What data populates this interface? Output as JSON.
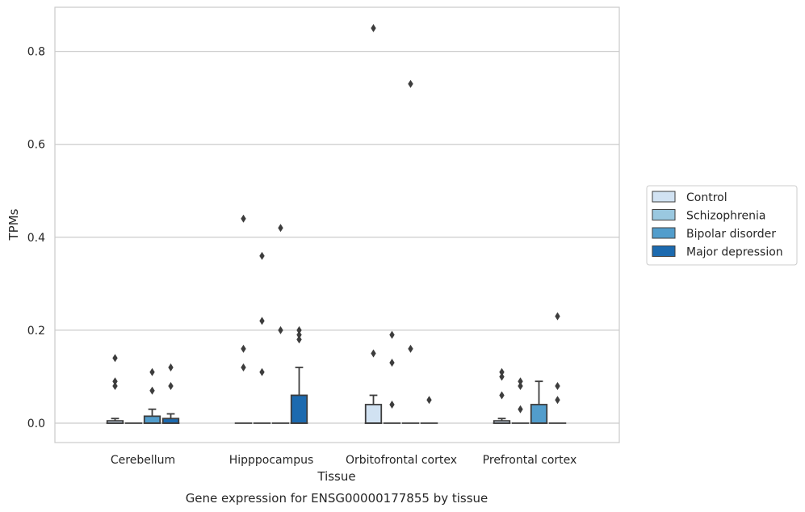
{
  "chart_data": {
    "type": "box",
    "title": "",
    "caption": "Gene expression for ENSG00000177855 by tissue",
    "xlabel": "Tissue",
    "ylabel": "TPMs",
    "ylim": [
      -0.042,
      0.895
    ],
    "yticks": [
      0.0,
      0.2,
      0.4,
      0.6,
      0.8
    ],
    "ytick_labels": [
      "0.0",
      "0.2",
      "0.4",
      "0.6",
      "0.8"
    ],
    "grid": true,
    "legend_position": "right",
    "categories": [
      "Cerebellum",
      "Hipppocampus",
      "Orbitofrontal cortex",
      "Prefrontal cortex"
    ],
    "series": [
      {
        "name": "Control",
        "color": "#d1e2f2"
      },
      {
        "name": "Schizophrenia",
        "color": "#9ac8e0"
      },
      {
        "name": "Bipolar disorder",
        "color": "#529dcc"
      },
      {
        "name": "Major depression",
        "color": "#1c6aaf"
      }
    ],
    "boxes": [
      {
        "category": 0,
        "series": 0,
        "q1": 0.0,
        "median": 0.0,
        "q3": 0.005,
        "whisker_low": 0.0,
        "whisker_high": 0.01,
        "outliers": [
          0.14,
          0.09,
          0.08
        ]
      },
      {
        "category": 0,
        "series": 1,
        "q1": 0.0,
        "median": 0.0,
        "q3": 0.0,
        "whisker_low": 0.0,
        "whisker_high": 0.0,
        "outliers": []
      },
      {
        "category": 0,
        "series": 2,
        "q1": 0.0,
        "median": 0.0,
        "q3": 0.015,
        "whisker_low": 0.0,
        "whisker_high": 0.03,
        "outliers": [
          0.11,
          0.07
        ]
      },
      {
        "category": 0,
        "series": 3,
        "q1": 0.0,
        "median": 0.0,
        "q3": 0.01,
        "whisker_low": 0.0,
        "whisker_high": 0.02,
        "outliers": [
          0.12,
          0.08
        ]
      },
      {
        "category": 1,
        "series": 0,
        "q1": 0.0,
        "median": 0.0,
        "q3": 0.0,
        "whisker_low": 0.0,
        "whisker_high": 0.0,
        "outliers": [
          0.44,
          0.16,
          0.12
        ]
      },
      {
        "category": 1,
        "series": 1,
        "q1": 0.0,
        "median": 0.0,
        "q3": 0.0,
        "whisker_low": 0.0,
        "whisker_high": 0.0,
        "outliers": [
          0.36,
          0.22,
          0.11
        ]
      },
      {
        "category": 1,
        "series": 2,
        "q1": 0.0,
        "median": 0.0,
        "q3": 0.0,
        "whisker_low": 0.0,
        "whisker_high": 0.0,
        "outliers": [
          0.42,
          0.2
        ]
      },
      {
        "category": 1,
        "series": 3,
        "q1": 0.0,
        "median": 0.0,
        "q3": 0.06,
        "whisker_low": 0.0,
        "whisker_high": 0.12,
        "outliers": [
          0.2,
          0.19,
          0.18
        ]
      },
      {
        "category": 2,
        "series": 0,
        "q1": 0.0,
        "median": 0.0,
        "q3": 0.04,
        "whisker_low": 0.0,
        "whisker_high": 0.06,
        "outliers": [
          0.85,
          0.15
        ]
      },
      {
        "category": 2,
        "series": 1,
        "q1": 0.0,
        "median": 0.0,
        "q3": 0.0,
        "whisker_low": 0.0,
        "whisker_high": 0.0,
        "outliers": [
          0.19,
          0.13,
          0.04
        ]
      },
      {
        "category": 2,
        "series": 2,
        "q1": 0.0,
        "median": 0.0,
        "q3": 0.0,
        "whisker_low": 0.0,
        "whisker_high": 0.0,
        "outliers": [
          0.73,
          0.16
        ]
      },
      {
        "category": 2,
        "series": 3,
        "q1": 0.0,
        "median": 0.0,
        "q3": 0.0,
        "whisker_low": 0.0,
        "whisker_high": 0.0,
        "outliers": [
          0.05
        ]
      },
      {
        "category": 3,
        "series": 0,
        "q1": 0.0,
        "median": 0.0,
        "q3": 0.005,
        "whisker_low": 0.0,
        "whisker_high": 0.01,
        "outliers": [
          0.11,
          0.1,
          0.06
        ]
      },
      {
        "category": 3,
        "series": 1,
        "q1": 0.0,
        "median": 0.0,
        "q3": 0.0,
        "whisker_low": 0.0,
        "whisker_high": 0.0,
        "outliers": [
          0.09,
          0.08,
          0.03
        ]
      },
      {
        "category": 3,
        "series": 2,
        "q1": 0.0,
        "median": 0.0,
        "q3": 0.04,
        "whisker_low": 0.0,
        "whisker_high": 0.09,
        "outliers": []
      },
      {
        "category": 3,
        "series": 3,
        "q1": 0.0,
        "median": 0.0,
        "q3": 0.0,
        "whisker_low": 0.0,
        "whisker_high": 0.0,
        "outliers": [
          0.23,
          0.08,
          0.05
        ]
      }
    ]
  }
}
